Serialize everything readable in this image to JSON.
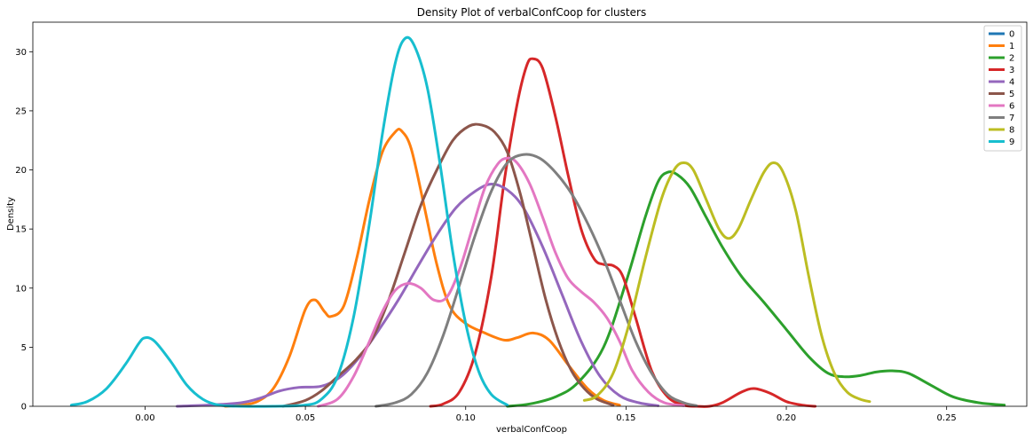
{
  "chart_data": {
    "type": "line",
    "title": "Density Plot of verbalConfCoop for clusters",
    "xlabel": "verbalConfCoop",
    "ylabel": "Density",
    "xlim": [
      -0.035,
      0.275
    ],
    "ylim": [
      0,
      32.5
    ],
    "xticks": [
      0.0,
      0.05,
      0.1,
      0.15,
      0.2,
      0.25
    ],
    "xtick_labels": [
      "0.00",
      "0.05",
      "0.10",
      "0.15",
      "0.20",
      "0.25"
    ],
    "yticks": [
      0,
      5,
      10,
      15,
      20,
      25,
      30
    ],
    "ytick_labels": [
      "0",
      "5",
      "10",
      "15",
      "20",
      "25",
      "30"
    ],
    "grid": false,
    "legend": "top-right",
    "series": [
      {
        "name": "0",
        "color": "#1f77b4",
        "points": []
      },
      {
        "name": "1",
        "color": "#ff7f0e",
        "points": [
          [
            0.025,
            0
          ],
          [
            0.03,
            0.1
          ],
          [
            0.035,
            0.4
          ],
          [
            0.04,
            1.5
          ],
          [
            0.045,
            4.2
          ],
          [
            0.05,
            8.2
          ],
          [
            0.053,
            9.0
          ],
          [
            0.056,
            8.0
          ],
          [
            0.058,
            7.6
          ],
          [
            0.062,
            8.5
          ],
          [
            0.066,
            12.5
          ],
          [
            0.07,
            17.5
          ],
          [
            0.074,
            21.5
          ],
          [
            0.078,
            23.2
          ],
          [
            0.08,
            23.3
          ],
          [
            0.083,
            21.8
          ],
          [
            0.087,
            17.0
          ],
          [
            0.091,
            12.0
          ],
          [
            0.095,
            8.5
          ],
          [
            0.1,
            7.0
          ],
          [
            0.106,
            6.2
          ],
          [
            0.112,
            5.6
          ],
          [
            0.116,
            5.8
          ],
          [
            0.121,
            6.2
          ],
          [
            0.126,
            5.6
          ],
          [
            0.132,
            3.5
          ],
          [
            0.138,
            1.5
          ],
          [
            0.143,
            0.5
          ],
          [
            0.148,
            0.1
          ]
        ]
      },
      {
        "name": "2",
        "color": "#2ca02c",
        "points": [
          [
            0.113,
            0
          ],
          [
            0.12,
            0.2
          ],
          [
            0.128,
            0.8
          ],
          [
            0.135,
            2.0
          ],
          [
            0.143,
            5.0
          ],
          [
            0.15,
            10.5
          ],
          [
            0.156,
            16.0
          ],
          [
            0.16,
            19.0
          ],
          [
            0.163,
            19.8
          ],
          [
            0.166,
            19.6
          ],
          [
            0.17,
            18.5
          ],
          [
            0.175,
            16.0
          ],
          [
            0.18,
            13.5
          ],
          [
            0.186,
            11.0
          ],
          [
            0.193,
            8.8
          ],
          [
            0.2,
            6.5
          ],
          [
            0.207,
            4.2
          ],
          [
            0.213,
            2.8
          ],
          [
            0.218,
            2.5
          ],
          [
            0.223,
            2.6
          ],
          [
            0.228,
            2.9
          ],
          [
            0.233,
            3.0
          ],
          [
            0.238,
            2.8
          ],
          [
            0.245,
            1.8
          ],
          [
            0.252,
            0.8
          ],
          [
            0.26,
            0.3
          ],
          [
            0.268,
            0.1
          ]
        ]
      },
      {
        "name": "3",
        "color": "#d62728",
        "points": [
          [
            0.089,
            0
          ],
          [
            0.093,
            0.2
          ],
          [
            0.098,
            1.2
          ],
          [
            0.103,
            4.5
          ],
          [
            0.108,
            11.0
          ],
          [
            0.112,
            19.0
          ],
          [
            0.116,
            25.5
          ],
          [
            0.119,
            28.8
          ],
          [
            0.121,
            29.4
          ],
          [
            0.124,
            28.6
          ],
          [
            0.128,
            24.5
          ],
          [
            0.132,
            19.5
          ],
          [
            0.136,
            15.0
          ],
          [
            0.14,
            12.5
          ],
          [
            0.143,
            12.0
          ],
          [
            0.146,
            11.9
          ],
          [
            0.149,
            11.0
          ],
          [
            0.153,
            7.5
          ],
          [
            0.158,
            3.0
          ],
          [
            0.163,
            0.8
          ],
          [
            0.168,
            0.1
          ],
          [
            0.172,
            0.0
          ],
          [
            0.176,
            0.0
          ],
          [
            0.18,
            0.3
          ],
          [
            0.186,
            1.2
          ],
          [
            0.19,
            1.5
          ],
          [
            0.195,
            1.1
          ],
          [
            0.2,
            0.4
          ],
          [
            0.205,
            0.1
          ],
          [
            0.209,
            0.0
          ]
        ]
      },
      {
        "name": "4",
        "color": "#9467bd",
        "points": [
          [
            0.01,
            0
          ],
          [
            0.02,
            0.1
          ],
          [
            0.03,
            0.3
          ],
          [
            0.036,
            0.7
          ],
          [
            0.042,
            1.3
          ],
          [
            0.048,
            1.6
          ],
          [
            0.055,
            1.7
          ],
          [
            0.061,
            2.5
          ],
          [
            0.067,
            4.2
          ],
          [
            0.073,
            6.5
          ],
          [
            0.079,
            9.0
          ],
          [
            0.085,
            11.8
          ],
          [
            0.091,
            14.5
          ],
          [
            0.097,
            16.8
          ],
          [
            0.103,
            18.2
          ],
          [
            0.108,
            18.8
          ],
          [
            0.113,
            18.3
          ],
          [
            0.118,
            16.8
          ],
          [
            0.124,
            13.5
          ],
          [
            0.13,
            9.5
          ],
          [
            0.136,
            5.5
          ],
          [
            0.142,
            2.5
          ],
          [
            0.148,
            0.9
          ],
          [
            0.154,
            0.3
          ],
          [
            0.16,
            0.05
          ]
        ]
      },
      {
        "name": "5",
        "color": "#8c564b",
        "points": [
          [
            0.043,
            0
          ],
          [
            0.05,
            0.5
          ],
          [
            0.055,
            1.3
          ],
          [
            0.06,
            2.5
          ],
          [
            0.066,
            4.0
          ],
          [
            0.071,
            5.8
          ],
          [
            0.076,
            9.0
          ],
          [
            0.081,
            13.0
          ],
          [
            0.086,
            17.0
          ],
          [
            0.091,
            20.0
          ],
          [
            0.096,
            22.5
          ],
          [
            0.101,
            23.7
          ],
          [
            0.105,
            23.8
          ],
          [
            0.109,
            23.2
          ],
          [
            0.113,
            21.5
          ],
          [
            0.117,
            18.0
          ],
          [
            0.121,
            13.5
          ],
          [
            0.125,
            9.0
          ],
          [
            0.129,
            5.5
          ],
          [
            0.133,
            3.0
          ],
          [
            0.137,
            1.5
          ],
          [
            0.141,
            0.6
          ],
          [
            0.146,
            0.1
          ]
        ]
      },
      {
        "name": "6",
        "color": "#e377c2",
        "points": [
          [
            0.054,
            0
          ],
          [
            0.06,
            0.6
          ],
          [
            0.065,
            2.5
          ],
          [
            0.07,
            5.5
          ],
          [
            0.074,
            8.0
          ],
          [
            0.078,
            9.8
          ],
          [
            0.082,
            10.4
          ],
          [
            0.086,
            10.0
          ],
          [
            0.09,
            9.0
          ],
          [
            0.094,
            9.2
          ],
          [
            0.098,
            11.5
          ],
          [
            0.102,
            15.0
          ],
          [
            0.106,
            18.5
          ],
          [
            0.11,
            20.5
          ],
          [
            0.113,
            21.0
          ],
          [
            0.116,
            20.6
          ],
          [
            0.12,
            18.8
          ],
          [
            0.124,
            16.0
          ],
          [
            0.128,
            13.0
          ],
          [
            0.132,
            10.8
          ],
          [
            0.136,
            9.7
          ],
          [
            0.14,
            8.8
          ],
          [
            0.144,
            7.5
          ],
          [
            0.148,
            5.5
          ],
          [
            0.152,
            3.0
          ],
          [
            0.157,
            1.2
          ],
          [
            0.162,
            0.3
          ],
          [
            0.168,
            0.05
          ]
        ]
      },
      {
        "name": "7",
        "color": "#7f7f7f",
        "points": [
          [
            0.072,
            0
          ],
          [
            0.078,
            0.3
          ],
          [
            0.083,
            1.0
          ],
          [
            0.088,
            2.8
          ],
          [
            0.093,
            6.0
          ],
          [
            0.098,
            10.2
          ],
          [
            0.103,
            14.5
          ],
          [
            0.108,
            18.2
          ],
          [
            0.113,
            20.6
          ],
          [
            0.118,
            21.3
          ],
          [
            0.123,
            21.0
          ],
          [
            0.128,
            19.8
          ],
          [
            0.133,
            18.0
          ],
          [
            0.138,
            15.5
          ],
          [
            0.143,
            12.5
          ],
          [
            0.148,
            9.0
          ],
          [
            0.153,
            5.5
          ],
          [
            0.158,
            2.8
          ],
          [
            0.163,
            1.0
          ],
          [
            0.168,
            0.3
          ],
          [
            0.172,
            0.05
          ]
        ]
      },
      {
        "name": "8",
        "color": "#bcbd22",
        "points": [
          [
            0.137,
            0.5
          ],
          [
            0.141,
            0.9
          ],
          [
            0.146,
            2.8
          ],
          [
            0.151,
            7.0
          ],
          [
            0.156,
            12.5
          ],
          [
            0.161,
            17.5
          ],
          [
            0.165,
            20.0
          ],
          [
            0.168,
            20.6
          ],
          [
            0.171,
            20.0
          ],
          [
            0.175,
            17.5
          ],
          [
            0.179,
            15.0
          ],
          [
            0.182,
            14.2
          ],
          [
            0.185,
            15.0
          ],
          [
            0.189,
            17.5
          ],
          [
            0.193,
            19.8
          ],
          [
            0.196,
            20.6
          ],
          [
            0.199,
            19.8
          ],
          [
            0.203,
            16.5
          ],
          [
            0.207,
            11.0
          ],
          [
            0.211,
            6.0
          ],
          [
            0.215,
            2.8
          ],
          [
            0.219,
            1.2
          ],
          [
            0.223,
            0.6
          ],
          [
            0.226,
            0.4
          ]
        ]
      },
      {
        "name": "9",
        "color": "#17becf",
        "points": [
          [
            -0.023,
            0.1
          ],
          [
            -0.018,
            0.4
          ],
          [
            -0.012,
            1.5
          ],
          [
            -0.006,
            3.6
          ],
          [
            -0.002,
            5.3
          ],
          [
            0.0,
            5.8
          ],
          [
            0.003,
            5.5
          ],
          [
            0.008,
            3.8
          ],
          [
            0.013,
            1.8
          ],
          [
            0.018,
            0.6
          ],
          [
            0.023,
            0.1
          ],
          [
            0.03,
            0.0
          ],
          [
            0.04,
            0.0
          ],
          [
            0.05,
            0.1
          ],
          [
            0.055,
            0.6
          ],
          [
            0.06,
            2.5
          ],
          [
            0.065,
            7.5
          ],
          [
            0.07,
            15.5
          ],
          [
            0.074,
            23.0
          ],
          [
            0.078,
            29.0
          ],
          [
            0.081,
            31.1
          ],
          [
            0.084,
            30.5
          ],
          [
            0.088,
            27.0
          ],
          [
            0.092,
            20.5
          ],
          [
            0.096,
            13.0
          ],
          [
            0.1,
            7.0
          ],
          [
            0.104,
            3.0
          ],
          [
            0.108,
            1.0
          ],
          [
            0.113,
            0.1
          ]
        ]
      }
    ]
  }
}
